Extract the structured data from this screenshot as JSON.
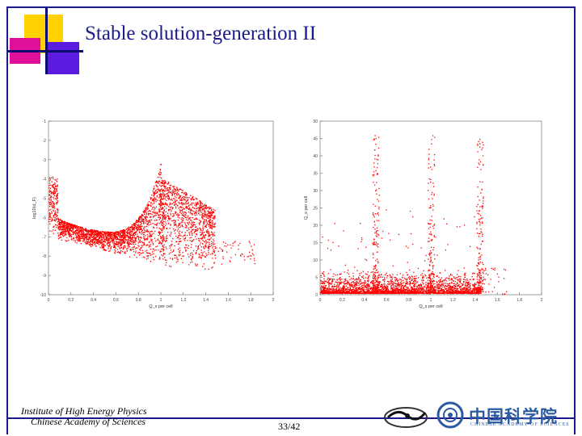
{
  "slide": {
    "title": "Stable solution-generation II",
    "page": "33/42"
  },
  "footer": {
    "institute_line1": "Institute of High Energy Physics",
    "institute_line2": "Chinese Academy of Sciences",
    "cas_name": "中国科学院",
    "cas_english": "CHINESE ACADEMY OF SCIENCES"
  },
  "chart_data": [
    {
      "type": "scatter",
      "title": "",
      "xlabel": "Q_x per cell",
      "ylabel": "log10(d_F)",
      "xlim": [
        0,
        2
      ],
      "ylim": [
        -10,
        -1
      ],
      "xticks": [
        "0",
        "0.2",
        "0.4",
        "0.6",
        "0.8",
        "1",
        "1.2",
        "1.4",
        "1.6",
        "1.8",
        "2"
      ],
      "yticks": [
        "-1",
        "-2",
        "-3",
        "-4",
        "-5",
        "-6",
        "-7",
        "-8",
        "-9",
        "-10"
      ],
      "color": "#ff0000",
      "description_points": [
        {
          "x": 0.02,
          "y": -4.5
        },
        {
          "x": 0.05,
          "y": -3.6
        },
        {
          "x": 0.1,
          "y": -5.7
        },
        {
          "x": 0.2,
          "y": -6.3
        },
        {
          "x": 0.3,
          "y": -6.8
        },
        {
          "x": 0.45,
          "y": -7.0
        },
        {
          "x": 0.6,
          "y": -7.4
        },
        {
          "x": 0.8,
          "y": -6.8
        },
        {
          "x": 0.95,
          "y": -5.5
        },
        {
          "x": 1.0,
          "y": -4.0
        },
        {
          "x": 1.1,
          "y": -6.5
        },
        {
          "x": 1.3,
          "y": -7.5
        },
        {
          "x": 1.45,
          "y": -8.0
        }
      ]
    },
    {
      "type": "scatter",
      "title": "",
      "xlabel": "Q_x per cell",
      "ylabel": "Q_s per cell",
      "xlim": [
        0,
        2
      ],
      "ylim": [
        0,
        50
      ],
      "xticks": [
        "0",
        "0.2",
        "0.4",
        "0.6",
        "0.8",
        "1",
        "1.2",
        "1.4",
        "1.6",
        "1.8",
        "2"
      ],
      "yticks": [
        "50",
        "45",
        "40",
        "35",
        "30",
        "25",
        "20",
        "15",
        "10",
        "5",
        "0"
      ],
      "color": "#ff0000",
      "description_points": [
        {
          "x": 0.05,
          "y": 3
        },
        {
          "x": 0.3,
          "y": 3
        },
        {
          "x": 0.5,
          "y": 10
        },
        {
          "x": 0.5,
          "y": 45
        },
        {
          "x": 0.8,
          "y": 4
        },
        {
          "x": 1.0,
          "y": 12
        },
        {
          "x": 1.0,
          "y": 48
        },
        {
          "x": 1.3,
          "y": 4
        },
        {
          "x": 1.45,
          "y": 20
        },
        {
          "x": 1.45,
          "y": 43
        }
      ]
    }
  ]
}
